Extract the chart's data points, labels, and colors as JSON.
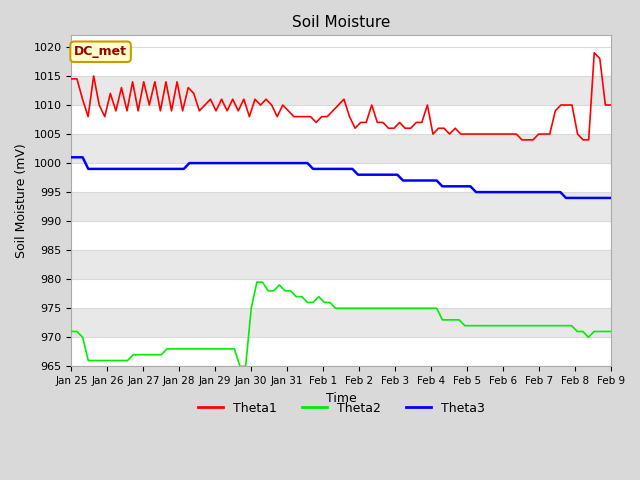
{
  "title": "Soil Moisture",
  "xlabel": "Time",
  "ylabel": "Soil Moisture (mV)",
  "ylim": [
    965,
    1022
  ],
  "yticks": [
    965,
    970,
    975,
    980,
    985,
    990,
    995,
    1000,
    1005,
    1010,
    1015,
    1020
  ],
  "xtick_labels": [
    "Jan 25",
    "Jan 26",
    "Jan 27",
    "Jan 28",
    "Jan 29",
    "Jan 30",
    "Jan 31",
    "Feb 1",
    "Feb 2",
    "Feb 3",
    "Feb 4",
    "Feb 5",
    "Feb 6",
    "Feb 7",
    "Feb 8",
    "Feb 9"
  ],
  "bg_color": "#d9d9d9",
  "axes_bg_color": "#ffffff",
  "grid_color": "#d9d9d9",
  "band_color1": "#ffffff",
  "band_color2": "#e8e8e8",
  "annotation_text": "DC_met",
  "annotation_bg": "#ffffcc",
  "annotation_border": "#cc9900",
  "annotation_text_color": "#990000",
  "theta1_color": "#ff0000",
  "theta2_color": "#00ee00",
  "theta3_color": "#0000ff",
  "theta1": [
    1014.5,
    1014.5,
    1011,
    1008,
    1015,
    1010,
    1008,
    1012,
    1009,
    1013,
    1009,
    1014,
    1009,
    1014,
    1010,
    1014,
    1009,
    1014,
    1009,
    1014,
    1009,
    1013,
    1012,
    1009,
    1010,
    1011,
    1009,
    1011,
    1009,
    1011,
    1009,
    1011,
    1008,
    1011,
    1010,
    1011,
    1010,
    1008,
    1010,
    1009,
    1008,
    1008,
    1008,
    1008,
    1007,
    1008,
    1008,
    1009,
    1010,
    1011,
    1008,
    1006,
    1007,
    1007,
    1010,
    1007,
    1007,
    1006,
    1006,
    1007,
    1006,
    1006,
    1007,
    1007,
    1010,
    1005,
    1006,
    1006,
    1005,
    1006,
    1005,
    1005,
    1005,
    1005,
    1005,
    1005,
    1005,
    1005,
    1005,
    1005,
    1005,
    1004,
    1004,
    1004,
    1005,
    1005,
    1005,
    1009,
    1010,
    1010,
    1010,
    1005,
    1004,
    1004,
    1019,
    1018,
    1010,
    1010
  ],
  "theta2": [
    971,
    971,
    970,
    966,
    966,
    966,
    966,
    966,
    966,
    966,
    966,
    967,
    967,
    967,
    967,
    967,
    967,
    968,
    968,
    968,
    968,
    968,
    968,
    968,
    968,
    968,
    968,
    968,
    968,
    968,
    965,
    965,
    975,
    979.5,
    979.5,
    978,
    978,
    979,
    978,
    978,
    977,
    977,
    976,
    976,
    977,
    976,
    976,
    975,
    975,
    975,
    975,
    975,
    975,
    975,
    975,
    975,
    975,
    975,
    975,
    975,
    975,
    975,
    975,
    975,
    975,
    975,
    973,
    973,
    973,
    973,
    972,
    972,
    972,
    972,
    972,
    972,
    972,
    972,
    972,
    972,
    972,
    972,
    972,
    972,
    972,
    972,
    972,
    972,
    972,
    972,
    971,
    971,
    970,
    971,
    971,
    971,
    971
  ],
  "theta3": [
    1001,
    1001,
    1001,
    999,
    999,
    999,
    999,
    999,
    999,
    999,
    999,
    999,
    999,
    999,
    999,
    999,
    999,
    999,
    999,
    999,
    999,
    1000,
    1000,
    1000,
    1000,
    1000,
    1000,
    1000,
    1000,
    1000,
    1000,
    1000,
    1000,
    1000,
    1000,
    1000,
    1000,
    1000,
    1000,
    1000,
    1000,
    1000,
    1000,
    999,
    999,
    999,
    999,
    999,
    999,
    999,
    999,
    998,
    998,
    998,
    998,
    998,
    998,
    998,
    998,
    997,
    997,
    997,
    997,
    997,
    997,
    997,
    996,
    996,
    996,
    996,
    996,
    996,
    995,
    995,
    995,
    995,
    995,
    995,
    995,
    995,
    995,
    995,
    995,
    995,
    995,
    995,
    995,
    995,
    994,
    994,
    994,
    994,
    994,
    994,
    994,
    994,
    994
  ]
}
